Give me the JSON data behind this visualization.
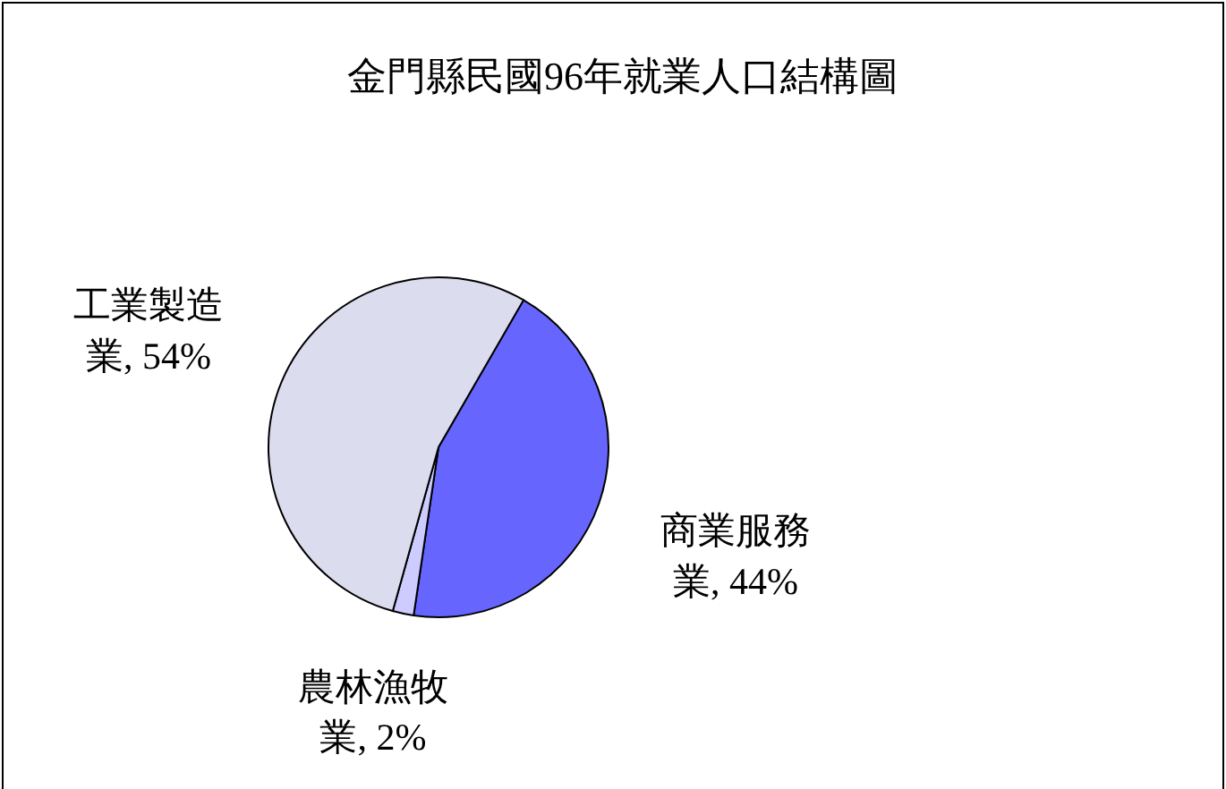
{
  "chart_data": {
    "type": "pie",
    "title": "金門縣民國96年就業人口結構圖",
    "categories": [
      "商業服務業",
      "農林漁牧業",
      "工業製造業"
    ],
    "values": [
      44,
      2,
      54
    ],
    "value_labels": [
      ", 44%",
      ", 2%",
      ", 54%"
    ],
    "colors": [
      "#6666ff",
      "#ccccff",
      "#dcdcef"
    ]
  }
}
